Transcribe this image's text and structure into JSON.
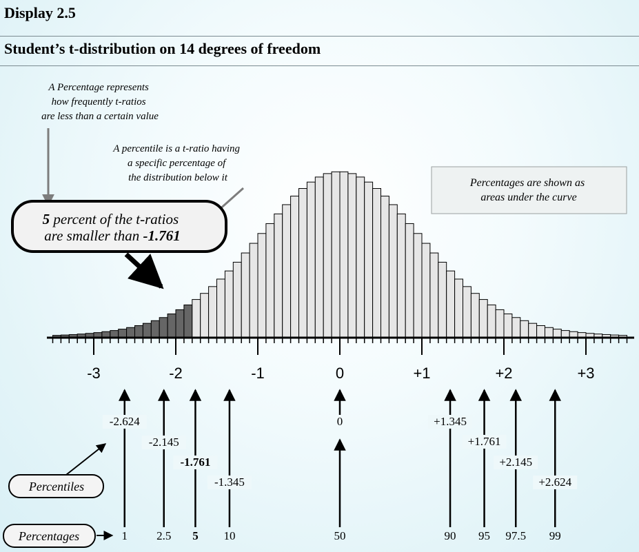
{
  "header": {
    "display_label": "Display 2.5",
    "title": "Student’s t-distribution on 14 degrees of freedom"
  },
  "annotations": {
    "percentage_note": [
      "A Percentage represents",
      "how frequently t-ratios",
      "are less than a certain value"
    ],
    "percentile_note": [
      "A percentile is a t-ratio having",
      "a specific percentage of",
      "the distribution below it"
    ],
    "areas_note": [
      "Percentages are shown as",
      "areas under the curve"
    ],
    "callout": {
      "line1_bold": "5",
      "line1_rest": " percent of the t-ratios",
      "line2_rest": "are smaller than ",
      "line2_bold": "-1.761"
    },
    "percentiles_label": "Percentiles",
    "percentages_label": "Percentages"
  },
  "colors": {
    "bar_fill": "#e6e6e6",
    "shaded_fill": "#666666",
    "bar_stroke": "#000000",
    "background": "#e3f4f8"
  },
  "chart_data": {
    "type": "bar",
    "title": "Student’s t-distribution on 14 degrees of freedom",
    "distribution": "Student t",
    "degrees_of_freedom": 14,
    "xlim": [
      -3.5,
      3.5
    ],
    "x_ticks": [
      "-3",
      "-2",
      "-1",
      "0",
      "+1",
      "+2",
      "+3"
    ],
    "x_tick_values": [
      -3,
      -2,
      -1,
      0,
      1,
      2,
      3
    ],
    "bin_width": 0.1,
    "shaded_region": {
      "upper_bound": -1.761,
      "description": "5 percent of the t-ratios are smaller than -1.761"
    },
    "percentile_markers": [
      {
        "percentile": "-2.624",
        "value": -2.624,
        "percentage": "1",
        "bold": false
      },
      {
        "percentile": "-2.145",
        "value": -2.145,
        "percentage": "2.5",
        "bold": false
      },
      {
        "percentile": "-1.761",
        "value": -1.761,
        "percentage": "5",
        "bold": true
      },
      {
        "percentile": "-1.345",
        "value": -1.345,
        "percentage": "10",
        "bold": false
      },
      {
        "percentile": "0",
        "value": 0,
        "percentage": "50",
        "bold": false
      },
      {
        "percentile": "+1.345",
        "value": 1.345,
        "percentage": "90",
        "bold": false
      },
      {
        "percentile": "+1.761",
        "value": 1.761,
        "percentage": "95",
        "bold": false
      },
      {
        "percentile": "+2.145",
        "value": 2.145,
        "percentage": "97.5",
        "bold": false
      },
      {
        "percentile": "+2.624",
        "value": 2.624,
        "percentage": "99",
        "bold": false
      }
    ]
  }
}
